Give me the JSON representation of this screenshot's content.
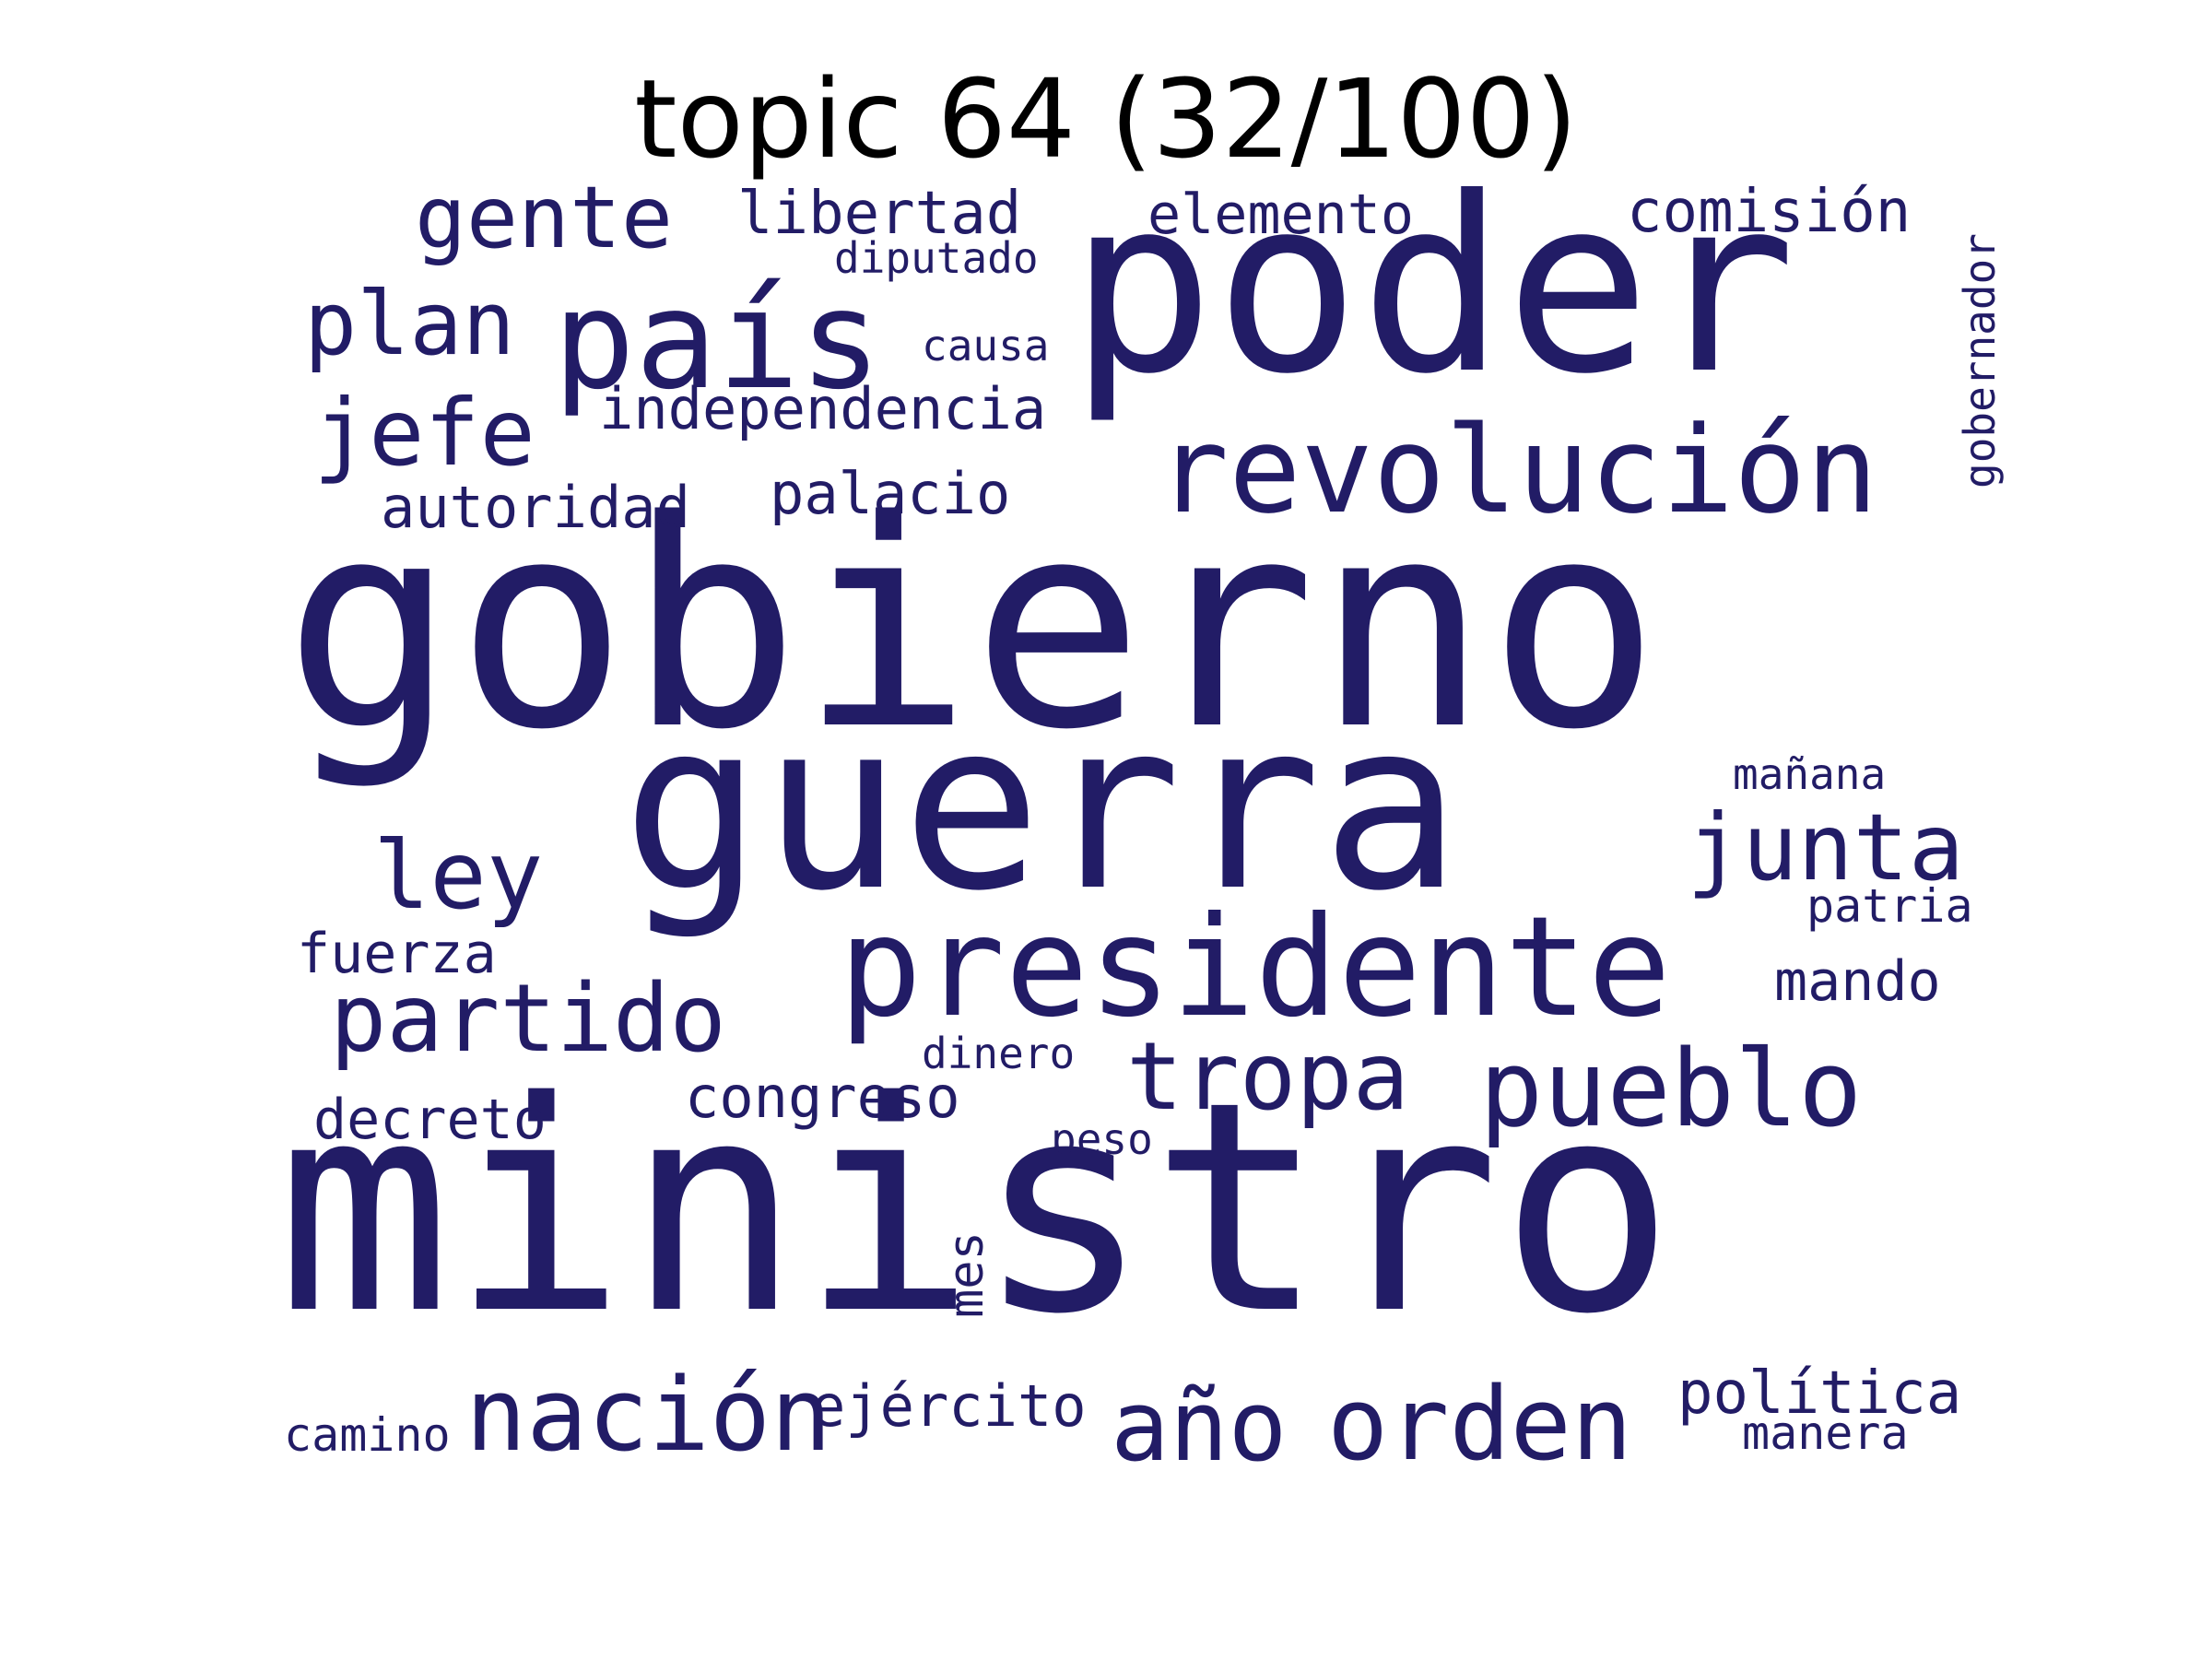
{
  "title": "topic 64 (32/100)",
  "colors": {
    "word": "#221c66",
    "background": "#ffffff",
    "title": "#000000"
  },
  "words": {
    "gobierno": "gobierno",
    "ministro": "ministro",
    "guerra": "guerra",
    "poder": "poder",
    "presidente": "presidente",
    "pais": "país",
    "revolucion": "revolución",
    "pueblo": "pueblo",
    "orden": "orden",
    "nacion": "nación",
    "ano": "año",
    "tropa": "tropa",
    "partido": "partido",
    "junta": "junta",
    "gente": "gente",
    "jefe": "jefe",
    "plan": "plan",
    "ley": "ley",
    "independencia": "independencia",
    "libertad": "libertad",
    "elemento": "elemento",
    "comision": "comisión",
    "autoridad": "autoridad",
    "palacio": "palacio",
    "congreso": "congreso",
    "ejercito": "ejército",
    "politica": "política",
    "mando": "mando",
    "fuerza": "fuerza",
    "decreto": "decreto",
    "diputado": "diputado",
    "causa": "causa",
    "gobernador": "gobernador",
    "manana": "mañana",
    "patria": "patria",
    "dinero": "dinero",
    "peso": "peso",
    "mes": "mes",
    "camino": "camino",
    "manera": "manera"
  }
}
